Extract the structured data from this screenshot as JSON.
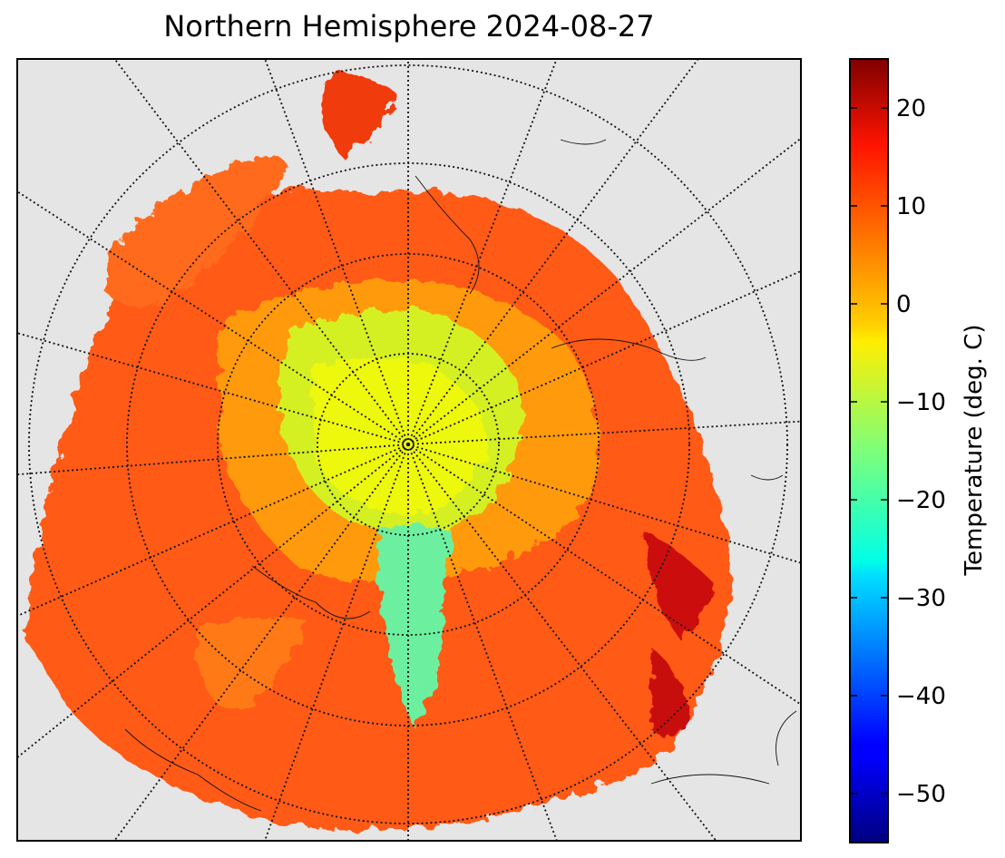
{
  "title": "Northern Hemisphere 2024-08-27",
  "colorbar": {
    "label": "Temperature (deg. C)",
    "min": -55,
    "max": 25,
    "ticks": [
      20,
      10,
      0,
      -10,
      -20,
      -30,
      -40,
      -50
    ],
    "tick_labels": [
      "20",
      "10",
      "0",
      "−10",
      "−20",
      "−30",
      "−40",
      "−50"
    ],
    "colormap": "jet"
  },
  "map": {
    "projection": "north-polar-stereographic",
    "background_color": "#e5e5e5",
    "graticule_style": "dotted"
  }
}
